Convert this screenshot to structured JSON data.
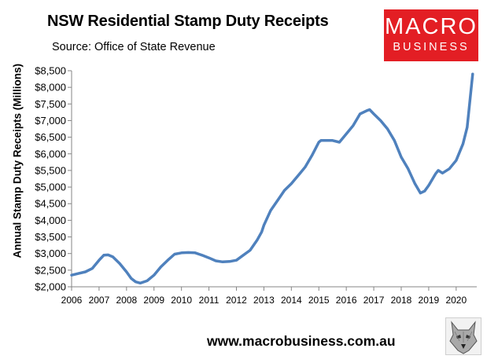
{
  "header": {
    "title": "NSW Residential Stamp Duty Receipts",
    "subtitle": "Source: Office of State Revenue"
  },
  "logo": {
    "line1": "MACRO",
    "line2": "BUSINESS",
    "color": "#e31e24"
  },
  "footer": {
    "url": "www.macrobusiness.com.au",
    "wolf_icon": "wolf-icon"
  },
  "chart_data": {
    "type": "line",
    "title": "NSW Residential Stamp Duty Receipts",
    "ylabel": "Annual Stamp Duty Receipts (Millions)",
    "xlabel": "",
    "xlim": [
      2006,
      2020.75
    ],
    "ylim": [
      2000,
      8500
    ],
    "x_ticks": [
      "2006",
      "2007",
      "2008",
      "2009",
      "2010",
      "2011",
      "2012",
      "2013",
      "2014",
      "2015",
      "2016",
      "2017",
      "2018",
      "2019",
      "2020"
    ],
    "y_ticks": [
      "$2,000",
      "$2,500",
      "$3,000",
      "$3,500",
      "$4,000",
      "$4,500",
      "$5,000",
      "$5,500",
      "$6,000",
      "$6,500",
      "$7,000",
      "$7,500",
      "$8,000",
      "$8,500"
    ],
    "grid": false,
    "legend": "none",
    "series": [
      {
        "color": "#4f81bd",
        "x": [
          2006.0,
          2006.25,
          2006.5,
          2006.75,
          2007.0,
          2007.17,
          2007.33,
          2007.5,
          2007.75,
          2008.0,
          2008.17,
          2008.33,
          2008.5,
          2008.75,
          2009.0,
          2009.25,
          2009.5,
          2009.75,
          2010.0,
          2010.25,
          2010.5,
          2010.75,
          2011.0,
          2011.25,
          2011.5,
          2011.75,
          2012.0,
          2012.25,
          2012.5,
          2012.75,
          2012.92,
          2013.0,
          2013.25,
          2013.5,
          2013.75,
          2014.0,
          2014.25,
          2014.5,
          2014.75,
          2015.0,
          2015.08,
          2015.25,
          2015.5,
          2015.75,
          2016.0,
          2016.25,
          2016.5,
          2016.75,
          2016.85,
          2017.0,
          2017.25,
          2017.5,
          2017.75,
          2018.0,
          2018.25,
          2018.5,
          2018.7,
          2018.85,
          2019.0,
          2019.25,
          2019.35,
          2019.5,
          2019.75,
          2020.0,
          2020.25,
          2020.4,
          2020.6
        ],
        "y": [
          2350,
          2400,
          2450,
          2550,
          2800,
          2950,
          2960,
          2900,
          2700,
          2450,
          2250,
          2150,
          2110,
          2180,
          2350,
          2600,
          2800,
          2980,
          3020,
          3030,
          3020,
          2950,
          2870,
          2780,
          2750,
          2760,
          2800,
          2950,
          3100,
          3400,
          3650,
          3850,
          4300,
          4600,
          4900,
          5100,
          5350,
          5600,
          5950,
          6350,
          6400,
          6400,
          6400,
          6350,
          6600,
          6850,
          7200,
          7300,
          7330,
          7200,
          7000,
          6750,
          6400,
          5900,
          5550,
          5100,
          4820,
          4880,
          5050,
          5400,
          5500,
          5420,
          5550,
          5800,
          6300,
          6800,
          8400
        ]
      }
    ]
  }
}
